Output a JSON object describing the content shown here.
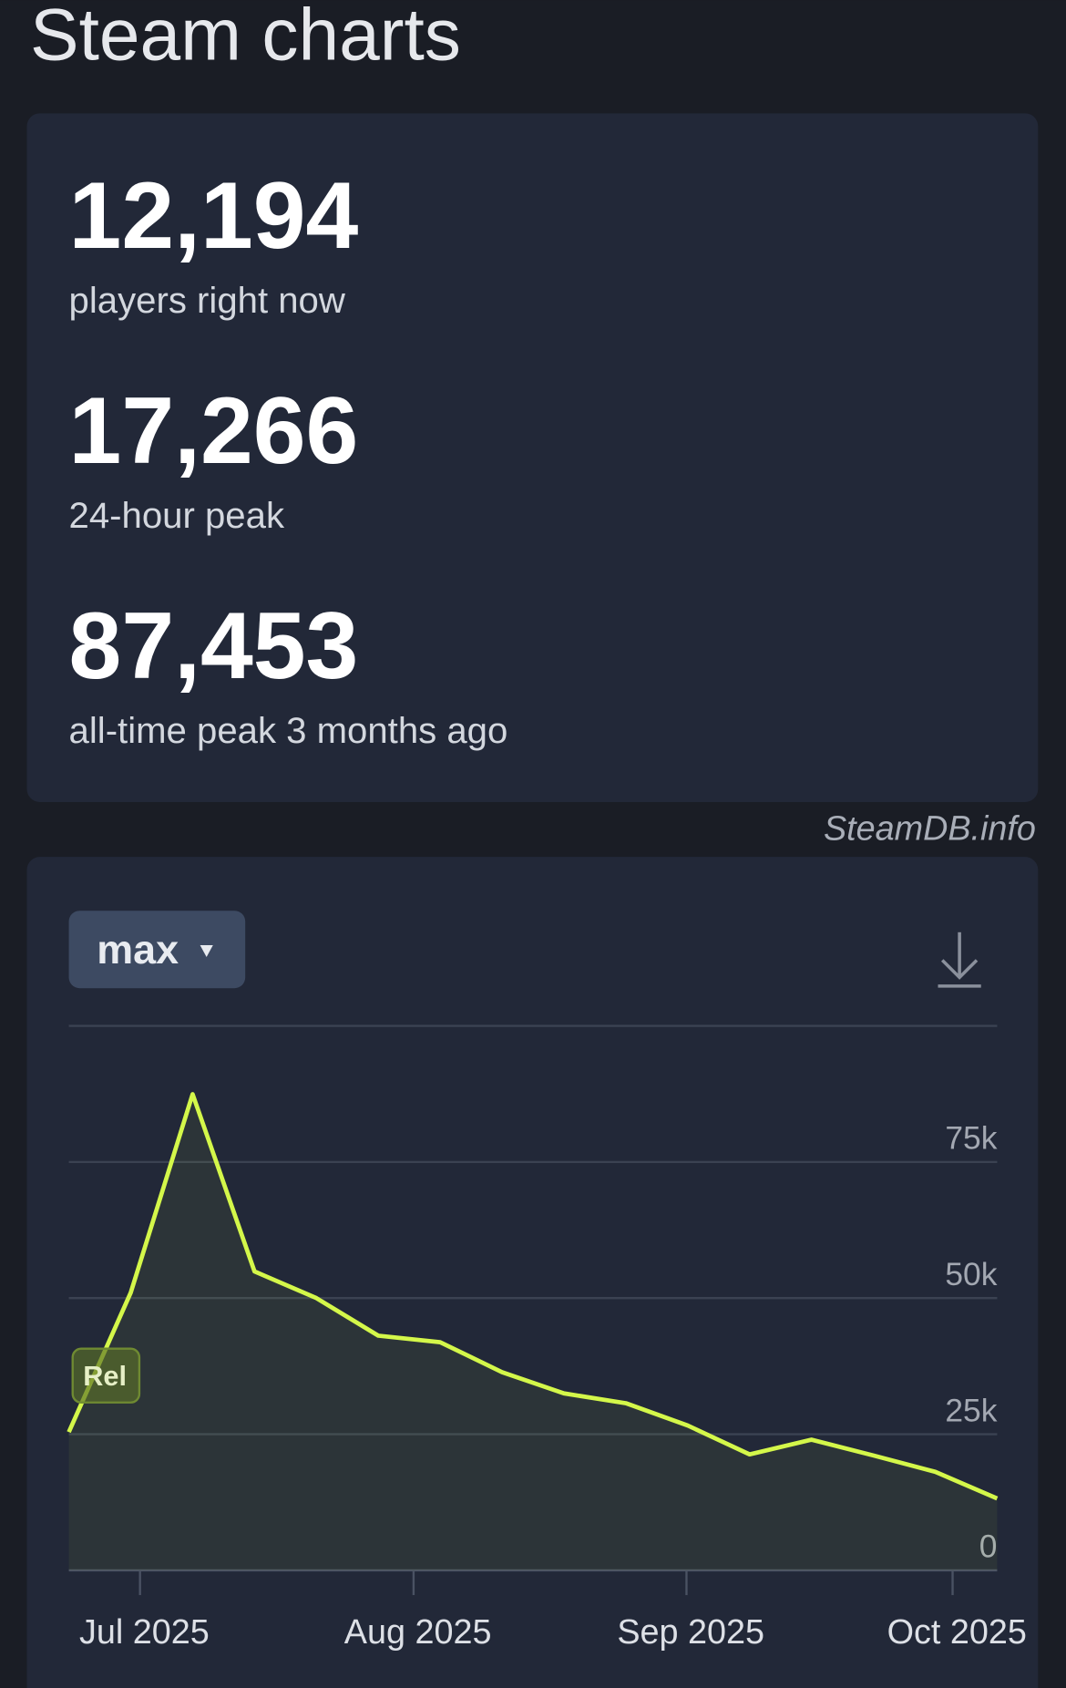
{
  "header": {
    "title": "Steam charts"
  },
  "stats": [
    {
      "value": "12,194",
      "label": "players right now"
    },
    {
      "value": "17,266",
      "label": "24-hour peak"
    },
    {
      "value": "87,453",
      "label": "all-time peak 3 months ago"
    }
  ],
  "watermark": "SteamDB.info",
  "controls": {
    "range": "max"
  },
  "chart_data": {
    "type": "line",
    "x": [
      0,
      1,
      2,
      3,
      4,
      5,
      6,
      7,
      8,
      9,
      10,
      11,
      12,
      13,
      14,
      15
    ],
    "series": [
      {
        "name": "Players",
        "color": "#d4f74a",
        "values": [
          25400,
          51000,
          87453,
          54900,
          50000,
          43100,
          41900,
          36400,
          32500,
          30700,
          26600,
          21300,
          24000,
          21100,
          18100,
          13200
        ]
      }
    ],
    "xlim": [
      0,
      15
    ],
    "xticks": [
      {
        "value": 1.15,
        "label": "Jul 2025"
      },
      {
        "value": 5.57,
        "label": "Aug 2025"
      },
      {
        "value": 9.98,
        "label": "Sep 2025"
      },
      {
        "value": 14.28,
        "label": "Oct 2025"
      }
    ],
    "ylim": [
      0,
      100000
    ],
    "yticks": [
      {
        "value": 0,
        "label": "0"
      },
      {
        "value": 25000,
        "label": "25k"
      },
      {
        "value": 50000,
        "label": "50k"
      },
      {
        "value": 75000,
        "label": "75k"
      }
    ],
    "grid": true,
    "annotations": [
      {
        "text": "Rel",
        "x": 0.6
      }
    ]
  }
}
